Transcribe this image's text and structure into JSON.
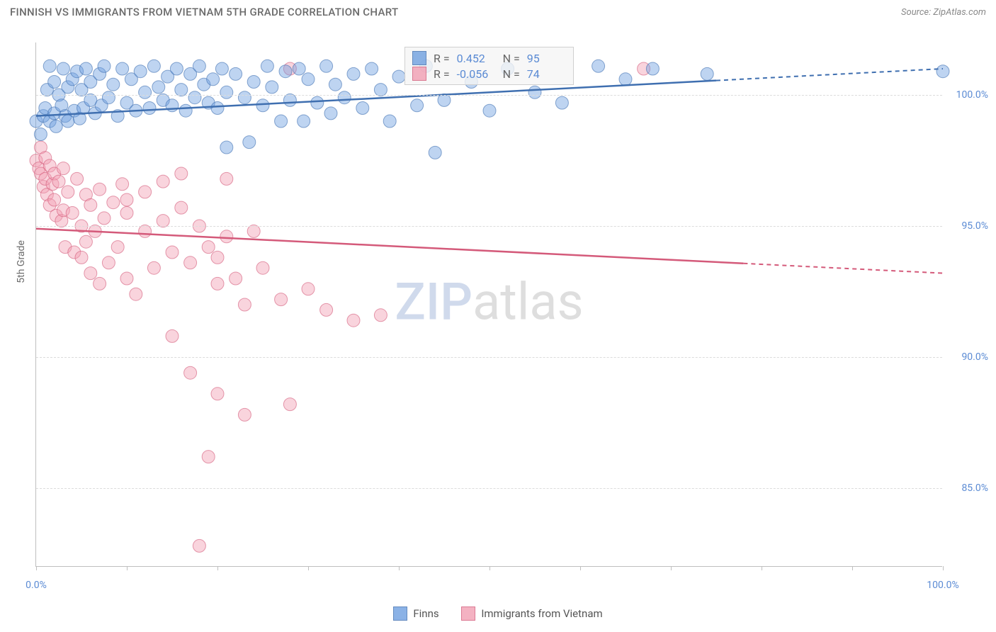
{
  "title": "FINNISH VS IMMIGRANTS FROM VIETNAM 5TH GRADE CORRELATION CHART",
  "source": "Source: ZipAtlas.com",
  "y_axis_title": "5th Grade",
  "watermark_part1": "ZIP",
  "watermark_part2": "atlas",
  "chart": {
    "type": "scatter",
    "xlim": [
      0,
      100
    ],
    "ylim": [
      82,
      102
    ],
    "x_ticks": [
      0,
      10,
      20,
      30,
      40,
      50,
      60,
      70,
      80,
      90,
      100
    ],
    "x_tick_labels": {
      "0": "0.0%",
      "100": "100.0%"
    },
    "y_gridlines": [
      85,
      90,
      95,
      100
    ],
    "y_tick_labels": {
      "85": "85.0%",
      "90": "90.0%",
      "95": "95.0%",
      "100": "100.0%"
    },
    "background_color": "#ffffff",
    "grid_color": "#dcdcdc",
    "axis_color": "#bfbfbf",
    "marker_radius": 9,
    "marker_opacity": 0.45,
    "series": {
      "finns": {
        "label": "Finns",
        "color_fill": "#6fa0e0",
        "color_stroke": "#3f6fb0",
        "R": "0.452",
        "N": "95",
        "trend": {
          "x1": 0,
          "y1": 99.2,
          "x2": 100,
          "y2": 101.0,
          "solid_until": 75
        },
        "points": [
          [
            0,
            99.0
          ],
          [
            0.5,
            98.5
          ],
          [
            0.8,
            99.2
          ],
          [
            1,
            99.5
          ],
          [
            1.2,
            100.2
          ],
          [
            1.5,
            99.0
          ],
          [
            1.5,
            101.1
          ],
          [
            2,
            99.3
          ],
          [
            2,
            100.5
          ],
          [
            2.2,
            98.8
          ],
          [
            2.5,
            100.0
          ],
          [
            2.8,
            99.6
          ],
          [
            3,
            101.0
          ],
          [
            3.2,
            99.2
          ],
          [
            3.5,
            100.3
          ],
          [
            3.5,
            99.0
          ],
          [
            4,
            100.6
          ],
          [
            4.2,
            99.4
          ],
          [
            4.5,
            100.9
          ],
          [
            4.8,
            99.1
          ],
          [
            5,
            100.2
          ],
          [
            5.2,
            99.5
          ],
          [
            5.5,
            101.0
          ],
          [
            6,
            99.8
          ],
          [
            6,
            100.5
          ],
          [
            6.5,
            99.3
          ],
          [
            7,
            100.8
          ],
          [
            7.2,
            99.6
          ],
          [
            7.5,
            101.1
          ],
          [
            8,
            99.9
          ],
          [
            8.5,
            100.4
          ],
          [
            9,
            99.2
          ],
          [
            9.5,
            101.0
          ],
          [
            10,
            99.7
          ],
          [
            10.5,
            100.6
          ],
          [
            11,
            99.4
          ],
          [
            11.5,
            100.9
          ],
          [
            12,
            100.1
          ],
          [
            12.5,
            99.5
          ],
          [
            13,
            101.1
          ],
          [
            13.5,
            100.3
          ],
          [
            14,
            99.8
          ],
          [
            14.5,
            100.7
          ],
          [
            15,
            99.6
          ],
          [
            15.5,
            101.0
          ],
          [
            16,
            100.2
          ],
          [
            16.5,
            99.4
          ],
          [
            17,
            100.8
          ],
          [
            17.5,
            99.9
          ],
          [
            18,
            101.1
          ],
          [
            18.5,
            100.4
          ],
          [
            19,
            99.7
          ],
          [
            19.5,
            100.6
          ],
          [
            20,
            99.5
          ],
          [
            20.5,
            101.0
          ],
          [
            21,
            100.1
          ],
          [
            21,
            98.0
          ],
          [
            22,
            100.8
          ],
          [
            23,
            99.9
          ],
          [
            23.5,
            98.2
          ],
          [
            24,
            100.5
          ],
          [
            25,
            99.6
          ],
          [
            25.5,
            101.1
          ],
          [
            26,
            100.3
          ],
          [
            27,
            99.0
          ],
          [
            27.5,
            100.9
          ],
          [
            28,
            99.8
          ],
          [
            29,
            101.0
          ],
          [
            29.5,
            99.0
          ],
          [
            30,
            100.6
          ],
          [
            31,
            99.7
          ],
          [
            32,
            101.1
          ],
          [
            32.5,
            99.3
          ],
          [
            33,
            100.4
          ],
          [
            34,
            99.9
          ],
          [
            35,
            100.8
          ],
          [
            36,
            99.5
          ],
          [
            37,
            101.0
          ],
          [
            38,
            100.2
          ],
          [
            39,
            99.0
          ],
          [
            40,
            100.7
          ],
          [
            42,
            99.6
          ],
          [
            43,
            101.1
          ],
          [
            44,
            97.8
          ],
          [
            45,
            99.8
          ],
          [
            48,
            100.5
          ],
          [
            50,
            99.4
          ],
          [
            52,
            101.0
          ],
          [
            55,
            100.1
          ],
          [
            58,
            99.7
          ],
          [
            62,
            101.1
          ],
          [
            65,
            100.6
          ],
          [
            68,
            101.0
          ],
          [
            74,
            100.8
          ],
          [
            100,
            100.9
          ]
        ]
      },
      "immigrants": {
        "label": "Immigrants from Vietnam",
        "color_fill": "#f29fb3",
        "color_stroke": "#d45a7a",
        "R": "-0.056",
        "N": "74",
        "trend": {
          "x1": 0,
          "y1": 94.9,
          "x2": 100,
          "y2": 93.2,
          "solid_until": 78
        },
        "points": [
          [
            0,
            97.5
          ],
          [
            0.3,
            97.2
          ],
          [
            0.5,
            98.0
          ],
          [
            0.5,
            97.0
          ],
          [
            0.8,
            96.5
          ],
          [
            1,
            96.8
          ],
          [
            1,
            97.6
          ],
          [
            1.2,
            96.2
          ],
          [
            1.5,
            97.3
          ],
          [
            1.5,
            95.8
          ],
          [
            1.8,
            96.6
          ],
          [
            2,
            97.0
          ],
          [
            2,
            96.0
          ],
          [
            2.2,
            95.4
          ],
          [
            2.5,
            96.7
          ],
          [
            2.8,
            95.2
          ],
          [
            3,
            97.2
          ],
          [
            3,
            95.6
          ],
          [
            3.2,
            94.2
          ],
          [
            3.5,
            96.3
          ],
          [
            4,
            95.5
          ],
          [
            4.2,
            94.0
          ],
          [
            4.5,
            96.8
          ],
          [
            5,
            95.0
          ],
          [
            5,
            93.8
          ],
          [
            5.5,
            96.2
          ],
          [
            5.5,
            94.4
          ],
          [
            6,
            95.8
          ],
          [
            6,
            93.2
          ],
          [
            6.5,
            94.8
          ],
          [
            7,
            96.4
          ],
          [
            7,
            92.8
          ],
          [
            7.5,
            95.3
          ],
          [
            8,
            93.6
          ],
          [
            8.5,
            95.9
          ],
          [
            9,
            94.2
          ],
          [
            9.5,
            96.6
          ],
          [
            10,
            93.0
          ],
          [
            10,
            95.5
          ],
          [
            10,
            96.0
          ],
          [
            11,
            92.4
          ],
          [
            12,
            94.8
          ],
          [
            12,
            96.3
          ],
          [
            13,
            93.4
          ],
          [
            14,
            95.2
          ],
          [
            14,
            96.7
          ],
          [
            15,
            94.0
          ],
          [
            15,
            90.8
          ],
          [
            16,
            95.7
          ],
          [
            16,
            97.0
          ],
          [
            17,
            93.6
          ],
          [
            17,
            89.4
          ],
          [
            18,
            95.0
          ],
          [
            19,
            94.2
          ],
          [
            19,
            86.2
          ],
          [
            20,
            92.8
          ],
          [
            20,
            93.8
          ],
          [
            20,
            88.6
          ],
          [
            21,
            94.6
          ],
          [
            21,
            96.8
          ],
          [
            22,
            93.0
          ],
          [
            23,
            92.0
          ],
          [
            23,
            87.8
          ],
          [
            24,
            94.8
          ],
          [
            25,
            93.4
          ],
          [
            27,
            92.2
          ],
          [
            28,
            88.2
          ],
          [
            28,
            101.0
          ],
          [
            30,
            92.6
          ],
          [
            32,
            91.8
          ],
          [
            35,
            91.4
          ],
          [
            38,
            91.6
          ],
          [
            67,
            101.0
          ],
          [
            18,
            82.8
          ]
        ]
      }
    }
  },
  "legend": {
    "label_R": "R =",
    "label_N": "N ="
  }
}
